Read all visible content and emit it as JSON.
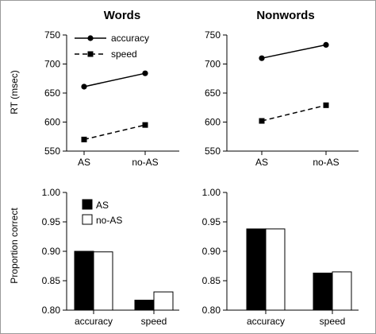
{
  "chart_data": [
    {
      "type": "line",
      "title": "Words",
      "ylabel": "RT (msec)",
      "categories": [
        "AS",
        "no-AS"
      ],
      "ylim": [
        550,
        750
      ],
      "yticks": [
        550,
        600,
        650,
        700,
        750
      ],
      "legend": "top-left",
      "series": [
        {
          "name": "accuracy",
          "values": [
            661,
            684
          ],
          "marker": "circle",
          "line": "solid"
        },
        {
          "name": "speed",
          "values": [
            570,
            595
          ],
          "marker": "square",
          "line": "dashed"
        }
      ]
    },
    {
      "type": "line",
      "title": "Nonwords",
      "ylabel": "",
      "categories": [
        "AS",
        "no-AS"
      ],
      "ylim": [
        550,
        750
      ],
      "yticks": [
        550,
        600,
        650,
        700,
        750
      ],
      "series": [
        {
          "name": "accuracy",
          "values": [
            710,
            733
          ],
          "marker": "circle",
          "line": "solid"
        },
        {
          "name": "speed",
          "values": [
            602,
            629
          ],
          "marker": "square",
          "line": "dashed"
        }
      ]
    },
    {
      "type": "bar",
      "title": "",
      "ylabel": "Proportion correct",
      "categories": [
        "accuracy",
        "speed"
      ],
      "ylim": [
        0.8,
        1.0
      ],
      "yticks": [
        "0.80",
        "0.85",
        "0.90",
        "0.95",
        "1.00"
      ],
      "legend": "top-left",
      "series": [
        {
          "name": "AS",
          "values": [
            0.9,
            0.817
          ],
          "color": "#000000"
        },
        {
          "name": "no-AS",
          "values": [
            0.899,
            0.831
          ],
          "color": "#ffffff"
        }
      ]
    },
    {
      "type": "bar",
      "title": "",
      "ylabel": "",
      "categories": [
        "accuracy",
        "speed"
      ],
      "ylim": [
        0.8,
        1.0
      ],
      "yticks": [
        "0.80",
        "0.85",
        "0.90",
        "0.95",
        "1.00"
      ],
      "series": [
        {
          "name": "AS",
          "values": [
            0.938,
            0.863
          ],
          "color": "#000000"
        },
        {
          "name": "no-AS",
          "values": [
            0.938,
            0.865
          ],
          "color": "#ffffff"
        }
      ]
    }
  ]
}
